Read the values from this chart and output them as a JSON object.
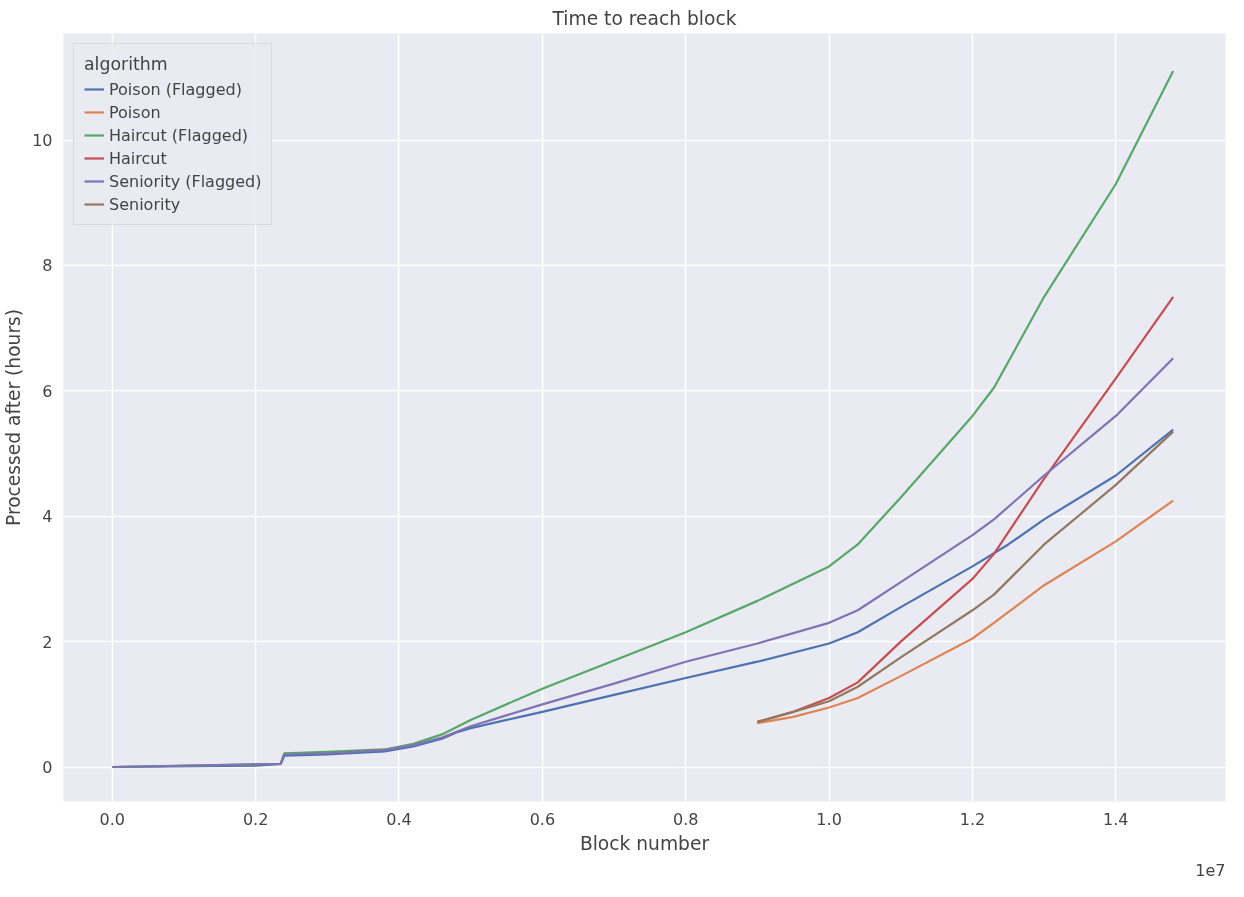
{
  "chart_data": {
    "type": "line",
    "title": "Time to reach block",
    "xlabel": "Block number",
    "ylabel": "Processed after (hours)",
    "legend_title": "algorithm",
    "legend": "top left",
    "grid": true,
    "xlim": [
      -0.068,
      1.553
    ],
    "xticks": [
      {
        "value": 0,
        "label": "0.0"
      },
      {
        "value": 0.2,
        "label": "0.2"
      },
      {
        "value": 0.4,
        "label": "0.4"
      },
      {
        "value": 0.6,
        "label": "0.6"
      },
      {
        "value": 0.8,
        "label": "0.8"
      },
      {
        "value": 1.0,
        "label": "1.0"
      },
      {
        "value": 1.2,
        "label": "1.2"
      },
      {
        "value": 1.4,
        "label": "1.4"
      }
    ],
    "ylim": [
      -0.55,
      11.7
    ],
    "yticks": [
      0,
      2,
      4,
      6,
      8,
      10
    ],
    "annotations": [
      "1e7"
    ],
    "series": [
      {
        "name": "Poison (Flagged)",
        "color": "#4c72b0",
        "x": [
          0,
          0.2,
          0.235,
          0.24,
          0.3,
          0.38,
          0.42,
          0.46,
          0.48,
          0.5,
          0.6,
          0.7,
          0.8,
          0.9,
          1.0,
          1.04,
          1.1,
          1.2,
          1.25,
          1.3,
          1.4,
          1.48
        ],
        "values": [
          0,
          0.02,
          0.05,
          0.18,
          0.2,
          0.25,
          0.33,
          0.45,
          0.55,
          0.62,
          0.88,
          1.15,
          1.42,
          1.68,
          1.97,
          2.15,
          2.55,
          3.2,
          3.55,
          3.95,
          4.65,
          5.38
        ]
      },
      {
        "name": "Poison",
        "color": "#dd8452",
        "x": [
          0.9,
          0.95,
          1.0,
          1.04,
          1.1,
          1.2,
          1.23,
          1.3,
          1.4,
          1.48
        ],
        "values": [
          0.7,
          0.8,
          0.95,
          1.1,
          1.45,
          2.05,
          2.3,
          2.9,
          3.6,
          4.25
        ]
      },
      {
        "name": "Haircut (Flagged)",
        "color": "#55a868",
        "x": [
          0,
          0.235,
          0.24,
          0.3,
          0.38,
          0.42,
          0.46,
          0.5,
          0.6,
          0.7,
          0.8,
          0.9,
          1.0,
          1.04,
          1.1,
          1.2,
          1.23,
          1.3,
          1.4,
          1.48
        ],
        "values": [
          0,
          0.05,
          0.22,
          0.24,
          0.28,
          0.37,
          0.52,
          0.75,
          1.25,
          1.7,
          2.15,
          2.65,
          3.2,
          3.55,
          4.3,
          5.6,
          6.05,
          7.5,
          9.3,
          11.1
        ]
      },
      {
        "name": "Haircut",
        "color": "#c44e52",
        "x": [
          0.9,
          0.95,
          1.0,
          1.04,
          1.1,
          1.2,
          1.23,
          1.3,
          1.4,
          1.48
        ],
        "values": [
          0.72,
          0.88,
          1.1,
          1.35,
          2.0,
          3.0,
          3.4,
          4.6,
          6.2,
          7.5
        ]
      },
      {
        "name": "Seniority (Flagged)",
        "color": "#8172b3",
        "x": [
          0,
          0.235,
          0.24,
          0.3,
          0.38,
          0.42,
          0.46,
          0.5,
          0.6,
          0.7,
          0.8,
          0.9,
          1.0,
          1.04,
          1.1,
          1.2,
          1.23,
          1.3,
          1.4,
          1.48
        ],
        "values": [
          0,
          0.05,
          0.2,
          0.22,
          0.27,
          0.35,
          0.47,
          0.65,
          1.0,
          1.33,
          1.68,
          1.97,
          2.3,
          2.5,
          2.95,
          3.7,
          3.95,
          4.65,
          5.6,
          6.52
        ]
      },
      {
        "name": "Seniority",
        "color": "#937860",
        "x": [
          0.9,
          0.95,
          1.0,
          1.04,
          1.1,
          1.2,
          1.23,
          1.3,
          1.4,
          1.48
        ],
        "values": [
          0.72,
          0.88,
          1.05,
          1.28,
          1.75,
          2.5,
          2.75,
          3.55,
          4.5,
          5.35
        ]
      }
    ]
  }
}
